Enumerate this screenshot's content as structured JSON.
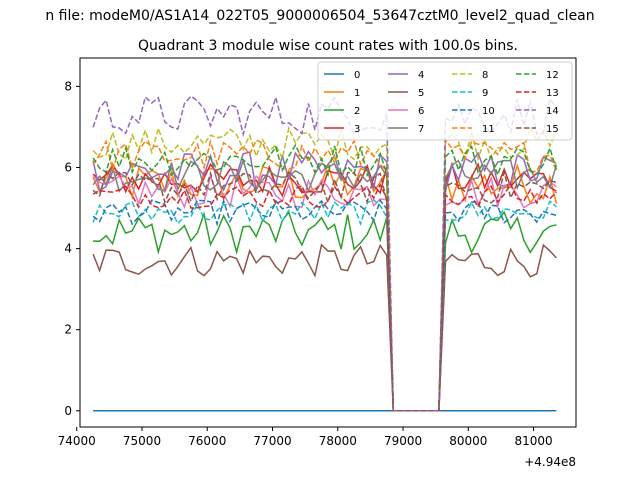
{
  "suptitle": "n file: modeM0/AS1A14_022T05_9000006504_53647cztM0_level2_quad_clean",
  "chart_data": {
    "type": "line",
    "title": "Quadrant 3 module wise count rates with 100.0s bins.",
    "xlabel": "",
    "ylabel": "",
    "x_offset_label": "+4.94e8",
    "xlim": [
      74050,
      81650
    ],
    "ylim": [
      -0.4,
      8.7
    ],
    "xticks": [
      74000,
      75000,
      76000,
      77000,
      78000,
      79000,
      80000,
      81000
    ],
    "xtick_labels": [
      "74000",
      "75000",
      "76000",
      "77000",
      "78000",
      "79000",
      "80000",
      "81000"
    ],
    "yticks": [
      0,
      2,
      4,
      6,
      8
    ],
    "ytick_labels": [
      "0",
      "2",
      "4",
      "6",
      "8"
    ],
    "legend_position": "top-right",
    "legend_columns": 4,
    "x_start": 74250,
    "x_step": 100,
    "n_points": 72,
    "gap": {
      "start": 78850,
      "end": 79550,
      "value": 0
    },
    "series": [
      {
        "name": "0",
        "color": "#1f77b4",
        "dash": "solid",
        "flat": 0
      },
      {
        "name": "1",
        "color": "#ff7f0e",
        "dash": "solid",
        "base": 5.6,
        "amp": 0.5
      },
      {
        "name": "2",
        "color": "#2ca02c",
        "dash": "solid",
        "base": 4.4,
        "amp": 0.5
      },
      {
        "name": "3",
        "color": "#d62728",
        "dash": "solid",
        "base": 5.7,
        "amp": 0.4
      },
      {
        "name": "4",
        "color": "#9467bd",
        "dash": "solid",
        "base": 5.9,
        "amp": 0.5
      },
      {
        "name": "5",
        "color": "#8c564b",
        "dash": "solid",
        "base": 3.7,
        "amp": 0.4
      },
      {
        "name": "6",
        "color": "#e377c2",
        "dash": "solid",
        "base": 5.4,
        "amp": 0.4
      },
      {
        "name": "7",
        "color": "#7f7f7f",
        "dash": "solid",
        "base": 5.8,
        "amp": 0.4
      },
      {
        "name": "8",
        "color": "#bcbd22",
        "dash": "dashed",
        "base": 6.6,
        "amp": 0.4
      },
      {
        "name": "9",
        "color": "#17becf",
        "dash": "dashed",
        "base": 4.9,
        "amp": 0.3
      },
      {
        "name": "10",
        "color": "#1f77b4",
        "dash": "dashed",
        "base": 4.9,
        "amp": 0.3
      },
      {
        "name": "11",
        "color": "#ff7f0e",
        "dash": "dashed",
        "base": 6.3,
        "amp": 0.4
      },
      {
        "name": "12",
        "color": "#2ca02c",
        "dash": "dashed",
        "base": 6.2,
        "amp": 0.4
      },
      {
        "name": "13",
        "color": "#d62728",
        "dash": "dashed",
        "base": 5.3,
        "amp": 0.3
      },
      {
        "name": "14",
        "color": "#9467bd",
        "dash": "dashed",
        "base": 7.3,
        "amp": 0.5
      },
      {
        "name": "15",
        "color": "#8c564b",
        "dash": "dashed",
        "base": 5.5,
        "amp": 0.4
      }
    ]
  }
}
